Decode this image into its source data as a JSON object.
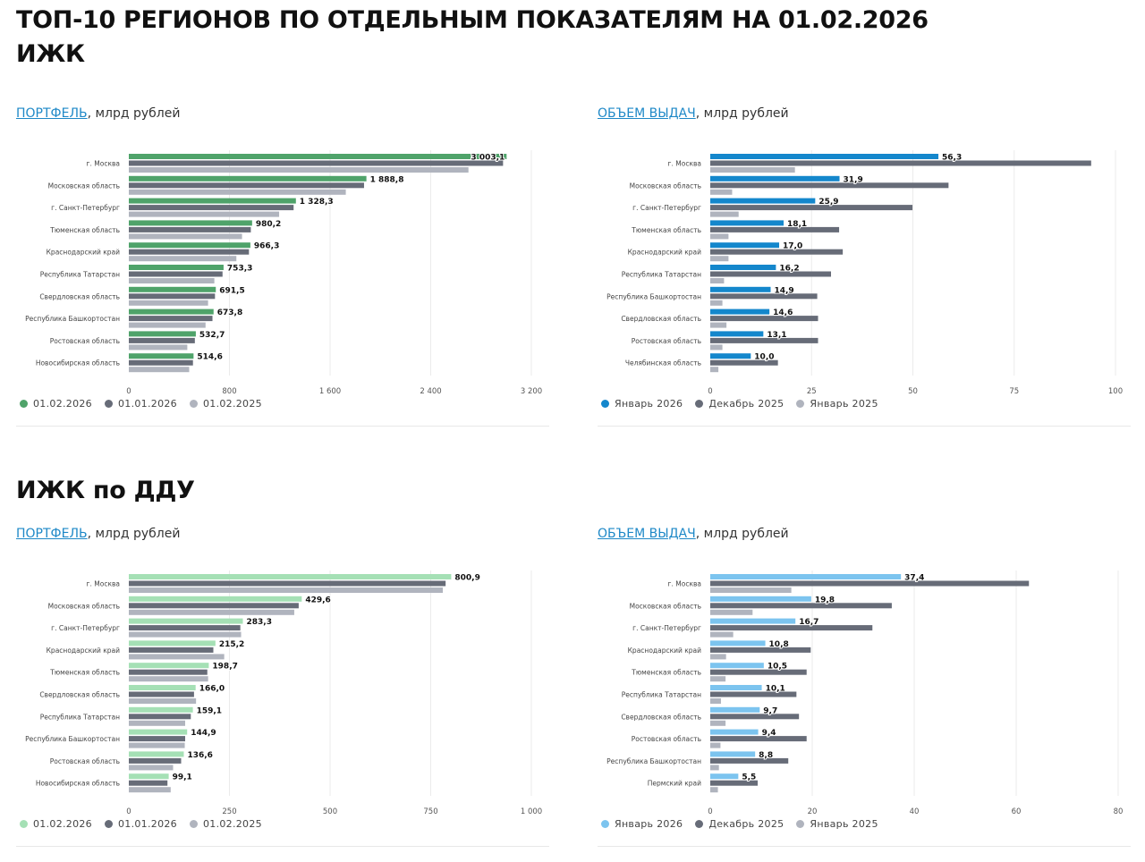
{
  "page": {
    "title_line1": "ТОП-10 РЕГИОНОВ ПО ОТДЕЛЬНЫМ ПОКАЗАТЕЛЯМ НА 01.02.2026",
    "title_line2": "ИЖК",
    "section2_title": "ИЖК по ДДУ"
  },
  "panels": [
    {
      "link": "ПОРТФЕЛЬ",
      "unit": ", млрд рублей",
      "legend": [
        {
          "label": "01.02.2026",
          "color": "#4fa36a"
        },
        {
          "label": "01.01.2026",
          "color": "#676c78"
        },
        {
          "label": "01.02.2025",
          "color": "#b0b4be"
        }
      ]
    },
    {
      "link": "ОБЪЕМ ВЫДАЧ",
      "unit": ", млрд рублей",
      "legend": [
        {
          "label": "Январь 2026",
          "color": "#1487cc"
        },
        {
          "label": "Декабрь 2025",
          "color": "#676c78"
        },
        {
          "label": "Январь 2025",
          "color": "#b0b4be"
        }
      ]
    },
    {
      "link": "ПОРТФЕЛЬ",
      "unit": ", млрд рублей",
      "legend": [
        {
          "label": "01.02.2026",
          "color": "#a5e0b5"
        },
        {
          "label": "01.01.2026",
          "color": "#676c78"
        },
        {
          "label": "01.02.2025",
          "color": "#b0b4be"
        }
      ]
    },
    {
      "link": "ОБЪЕМ ВЫДАЧ",
      "unit": ", млрд рублей",
      "legend": [
        {
          "label": "Январь 2026",
          "color": "#7cc4ef"
        },
        {
          "label": "Декабрь 2025",
          "color": "#676c78"
        },
        {
          "label": "Январь 2025",
          "color": "#b0b4be"
        }
      ]
    }
  ],
  "chart_data": [
    {
      "type": "bar",
      "orientation": "horizontal",
      "title": "ИЖК — ПОРТФЕЛЬ, млрд рублей",
      "xlim": [
        0,
        3200
      ],
      "ticks": [
        0,
        800,
        1600,
        2400,
        3200
      ],
      "tick_labels": [
        "0",
        "800",
        "1 600",
        "2 400",
        "3 200"
      ],
      "grid": true,
      "legend_position": "bottom-left",
      "categories": [
        "г. Москва",
        "Московская область",
        "г. Санкт-Петербург",
        "Тюменская область",
        "Краснодарский край",
        "Республика Татарстан",
        "Свердловская область",
        "Республика Башкортостан",
        "Ростовская область",
        "Новосибирская область"
      ],
      "series": [
        {
          "name": "01.02.2026",
          "color": "#4fa36a",
          "values": [
            3003.1,
            1888.8,
            1328.3,
            980.2,
            966.3,
            753.3,
            691.5,
            673.8,
            532.7,
            514.6
          ],
          "labels": [
            "3 003,1",
            "1 888,8",
            "1 328,3",
            "980,2",
            "966,3",
            "753,3",
            "691,5",
            "673,8",
            "532,7",
            "514,6"
          ]
        },
        {
          "name": "01.01.2026",
          "color": "#676c78",
          "values": [
            2975,
            1870,
            1310,
            970,
            955,
            745,
            685,
            665,
            525,
            510
          ]
        },
        {
          "name": "01.02.2025",
          "color": "#b0b4be",
          "values": [
            2700,
            1725,
            1195,
            900,
            855,
            680,
            630,
            610,
            465,
            480
          ]
        }
      ]
    },
    {
      "type": "bar",
      "orientation": "horizontal",
      "title": "ИЖК — ОБЪЕМ ВЫДАЧ, млрд рублей",
      "xlim": [
        0,
        100
      ],
      "ticks": [
        0,
        25,
        50,
        75,
        100
      ],
      "tick_labels": [
        "0",
        "25",
        "50",
        "75",
        "100"
      ],
      "grid": true,
      "legend_position": "bottom-left",
      "categories": [
        "г. Москва",
        "Московская область",
        "г. Санкт-Петербург",
        "Тюменская область",
        "Краснодарский край",
        "Республика Татарстан",
        "Республика Башкортостан",
        "Свердловская область",
        "Ростовская область",
        "Челябинская область"
      ],
      "series": [
        {
          "name": "Январь 2026",
          "color": "#1487cc",
          "values": [
            56.3,
            31.9,
            25.9,
            18.1,
            17.0,
            16.2,
            14.9,
            14.6,
            13.1,
            10.0
          ],
          "labels": [
            "56,3",
            "31,9",
            "25,9",
            "18,1",
            "17,0",
            "16,2",
            "14,9",
            "14,6",
            "13,1",
            "10,0"
          ]
        },
        {
          "name": "Декабрь 2025",
          "color": "#676c78",
          "values": [
            94.0,
            58.8,
            49.9,
            31.8,
            32.7,
            29.8,
            26.4,
            26.6,
            26.6,
            16.7
          ]
        },
        {
          "name": "Январь 2025",
          "color": "#b0b4be",
          "values": [
            20.9,
            5.4,
            7.0,
            4.5,
            4.5,
            3.4,
            3.0,
            4.0,
            3.0,
            2.0
          ]
        }
      ]
    },
    {
      "type": "bar",
      "orientation": "horizontal",
      "title": "ИЖК по ДДУ — ПОРТФЕЛЬ, млрд рублей",
      "xlim": [
        0,
        1000
      ],
      "ticks": [
        0,
        250,
        500,
        750,
        1000
      ],
      "tick_labels": [
        "0",
        "250",
        "500",
        "750",
        "1 000"
      ],
      "grid": true,
      "legend_position": "bottom-left",
      "categories": [
        "г. Москва",
        "Московская область",
        "г. Санкт-Петербург",
        "Краснодарский край",
        "Тюменская область",
        "Свердловская область",
        "Республика Татарстан",
        "Республика Башкортостан",
        "Ростовская область",
        "Новосибирская область"
      ],
      "series": [
        {
          "name": "01.02.2026",
          "color": "#a5e0b5",
          "values": [
            800.9,
            429.6,
            283.3,
            215.2,
            198.7,
            166.0,
            159.1,
            144.9,
            136.6,
            99.1
          ],
          "labels": [
            "800,9",
            "429,6",
            "283,3",
            "215,2",
            "198,7",
            "166,0",
            "159,1",
            "144,9",
            "136,6",
            "99,1"
          ]
        },
        {
          "name": "01.01.2026",
          "color": "#676c78",
          "values": [
            787,
            422,
            277,
            210,
            195,
            162,
            154,
            140,
            130,
            96
          ]
        },
        {
          "name": "01.02.2025",
          "color": "#b0b4be",
          "values": [
            780,
            411,
            279,
            237,
            197,
            167,
            140,
            139,
            110,
            104
          ]
        }
      ]
    },
    {
      "type": "bar",
      "orientation": "horizontal",
      "title": "ИЖК по ДДУ — ОБЪЕМ ВЫДАЧ, млрд рублей",
      "xlim": [
        0,
        80
      ],
      "ticks": [
        0,
        20,
        40,
        60,
        80
      ],
      "tick_labels": [
        "0",
        "20",
        "40",
        "60",
        "80"
      ],
      "grid": true,
      "legend_position": "bottom-left",
      "categories": [
        "г. Москва",
        "Московская область",
        "г. Санкт-Петербург",
        "Краснодарский край",
        "Тюменская область",
        "Республика Татарстан",
        "Свердловская область",
        "Ростовская область",
        "Республика Башкортостан",
        "Пермский край"
      ],
      "series": [
        {
          "name": "Январь 2026",
          "color": "#7cc4ef",
          "values": [
            37.4,
            19.8,
            16.7,
            10.8,
            10.5,
            10.1,
            9.7,
            9.4,
            8.8,
            5.5
          ],
          "labels": [
            "37,4",
            "19,8",
            "16,7",
            "10,8",
            "10,5",
            "10,1",
            "9,7",
            "9,4",
            "8,8",
            "5,5"
          ]
        },
        {
          "name": "Декабрь 2025",
          "color": "#676c78",
          "values": [
            62.5,
            35.6,
            31.8,
            19.7,
            18.9,
            16.9,
            17.4,
            18.9,
            15.3,
            9.3
          ]
        },
        {
          "name": "Январь 2025",
          "color": "#b0b4be",
          "values": [
            15.9,
            8.3,
            4.5,
            3.1,
            3.0,
            2.1,
            3.0,
            2.0,
            1.7,
            1.5
          ]
        }
      ]
    }
  ]
}
